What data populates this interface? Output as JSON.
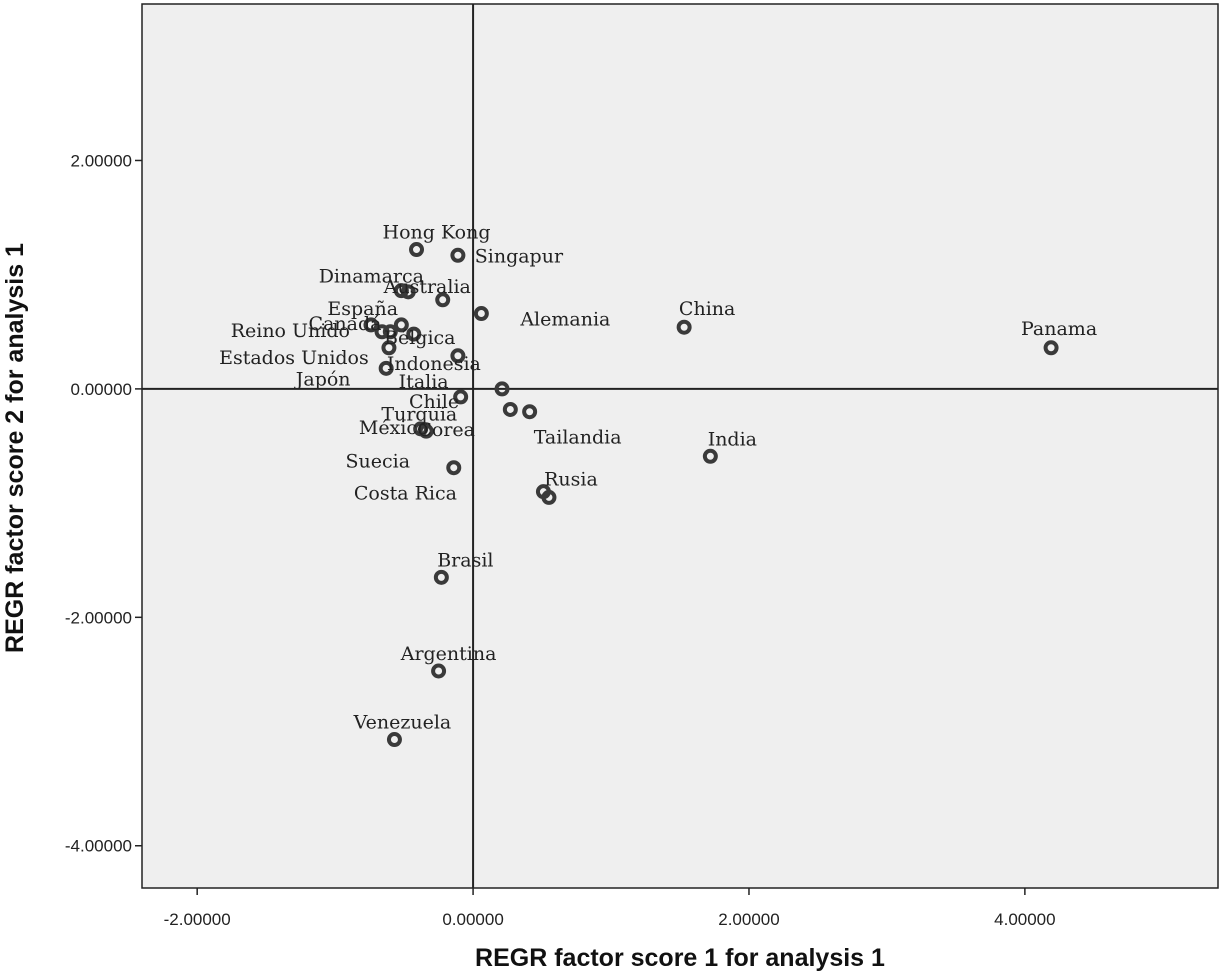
{
  "chart_data": {
    "type": "scatter",
    "title": "",
    "xlabel": "REGR factor score   1 for analysis 1",
    "ylabel": "REGR factor score   2 for analysis 1",
    "xlim": [
      -2.4,
      5.4
    ],
    "ylim": [
      -4.37,
      3.37
    ],
    "x_ticks": [
      -2,
      0,
      2,
      4
    ],
    "x_tick_labels": [
      "-2.00000",
      "0.00000",
      "2.00000",
      "4.00000"
    ],
    "y_ticks": [
      2,
      0,
      -2,
      -4
    ],
    "y_tick_labels": [
      "2.00000",
      "0.00000",
      "-2.00000",
      "-4.00000"
    ],
    "reference_lines": {
      "x": 0,
      "y": 0
    },
    "grid": false,
    "legend": "none",
    "background_color": "#efefef",
    "marker_color": "#3a3a3a",
    "points": [
      {
        "label": "Hong Kong",
        "x": -0.41,
        "y": 1.22
      },
      {
        "label": "Singapur",
        "x": -0.11,
        "y": 1.17
      },
      {
        "label": "Dinamarca",
        "x": -0.52,
        "y": 0.86
      },
      {
        "label": "Australia",
        "x": -0.47,
        "y": 0.85
      },
      {
        "label": "España",
        "x": -0.22,
        "y": 0.78
      },
      {
        "label": "Canadá",
        "x": -0.74,
        "y": 0.56
      },
      {
        "label": "Reino Unido",
        "x": -0.52,
        "y": 0.56
      },
      {
        "label": "Bélgica",
        "x": -0.43,
        "y": 0.48
      },
      {
        "label": "Alemania",
        "x": 0.06,
        "y": 0.66
      },
      {
        "label": "Estados Unidos",
        "x": -0.61,
        "y": 0.36
      },
      {
        "label": "Indonesia",
        "x": -0.11,
        "y": 0.29
      },
      {
        "label": "Japón",
        "x": -0.63,
        "y": 0.18
      },
      {
        "label": "Italia",
        "x": -0.09,
        "y": -0.07
      },
      {
        "label": "Chile",
        "x": 0.21,
        "y": 0.0
      },
      {
        "label": "Turquia",
        "x": 0.27,
        "y": -0.18
      },
      {
        "label": "Tailandia",
        "x": 0.41,
        "y": -0.2
      },
      {
        "label": "México",
        "x": -0.38,
        "y": -0.35
      },
      {
        "label": "Corea",
        "x": -0.34,
        "y": -0.37
      },
      {
        "label": "Suecia",
        "x": -0.14,
        "y": -0.69
      },
      {
        "label": "Costa Rica",
        "x": 0.51,
        "y": -0.9
      },
      {
        "label": "Rusia",
        "x": 0.55,
        "y": -0.95
      },
      {
        "label": "China",
        "x": 1.53,
        "y": 0.54
      },
      {
        "label": "India",
        "x": 1.72,
        "y": -0.59
      },
      {
        "label": "Panama",
        "x": 4.19,
        "y": 0.36
      },
      {
        "label": "Brasil",
        "x": -0.23,
        "y": -1.65
      },
      {
        "label": "Argentina",
        "x": -0.25,
        "y": -2.47
      },
      {
        "label": "Venezuela",
        "x": -0.57,
        "y": -3.07
      }
    ],
    "extra_points": [
      {
        "x": -0.66,
        "y": 0.5
      },
      {
        "x": -0.6,
        "y": 0.5
      }
    ]
  }
}
